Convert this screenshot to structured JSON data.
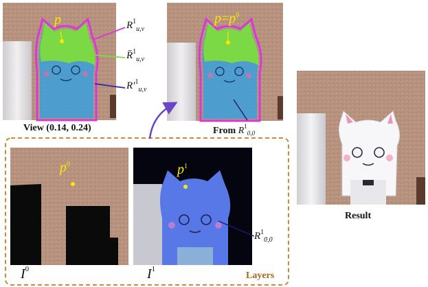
{
  "panels": {
    "view": {
      "caption": "View (0.14, 0.24)",
      "point_label": "p",
      "labels": [
        {
          "main": "R",
          "sup": "1",
          "sub": "u,v"
        },
        {
          "main": "R̄",
          "sup": "1",
          "sub": "u,v"
        },
        {
          "main": "R′",
          "sup": "1",
          "sub": "u,v"
        }
      ]
    },
    "from": {
      "caption_main": "From ",
      "caption_var": "R",
      "caption_sup": "1",
      "caption_sub": "0,0",
      "point_label_a": "p",
      "point_label_eq": "=",
      "point_label_b": "p",
      "point_label_b_sup": "0"
    },
    "result": {
      "caption": "Result"
    },
    "layer0": {
      "point_label": "p",
      "point_sup": "0",
      "image_label": "I",
      "image_sup": "0"
    },
    "layer1": {
      "point_label": "p",
      "point_sup": "1",
      "image_label": "I",
      "image_sup": "1",
      "region_label": {
        "main": "R",
        "sup": "1",
        "sub": "0,0"
      }
    },
    "layers_group": {
      "label": "Layers"
    }
  },
  "colors": {
    "magenta": "#d63ad6",
    "green_fill": "#7cdc3c",
    "blue_fill": "#3a9fdc",
    "yellow": "#ffe600",
    "dashed_border": "#c98a3a",
    "arrow": "#6a45c8",
    "layer_blue": "#5878e8"
  }
}
